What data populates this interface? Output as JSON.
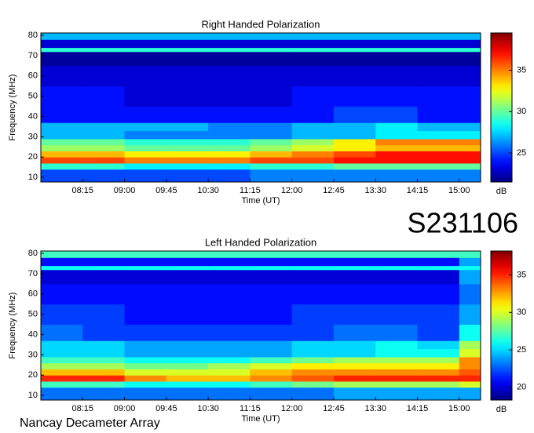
{
  "chart_data": [
    {
      "type": "heatmap",
      "title": "Right Handed Polarization",
      "xlabel": "Time (UT)",
      "ylabel": "Frequency (MHz)",
      "colorbar_label": "dB",
      "colormap": "jet",
      "xlim": [
        "07:30",
        "15:23"
      ],
      "xticks": [
        "08:15",
        "09:00",
        "09:45",
        "10:30",
        "11:15",
        "12:00",
        "12:45",
        "13:30",
        "14:15",
        "15:00"
      ],
      "ylim": [
        7.7,
        81.2
      ],
      "yticks": [
        10,
        20,
        30,
        40,
        50,
        60,
        70,
        80
      ],
      "clim": [
        21.5,
        39.5
      ],
      "cticks": [
        25,
        30,
        35
      ],
      "x": [
        "07:30",
        "08:15",
        "09:00",
        "09:45",
        "10:30",
        "11:15",
        "12:00",
        "12:45",
        "13:30",
        "14:15",
        "15:00"
      ],
      "y": [
        7.7,
        14,
        17,
        20,
        23,
        26,
        29,
        33,
        37,
        45,
        55,
        65,
        72,
        74,
        78
      ],
      "values": [
        [
          25,
          25,
          25,
          25,
          25,
          26,
          26,
          26,
          26,
          26,
          26
        ],
        [
          29,
          29,
          28,
          28,
          28,
          29,
          29,
          30,
          30,
          30,
          30
        ],
        [
          36,
          36,
          35,
          35,
          35,
          36,
          36,
          37,
          37,
          37,
          37
        ],
        [
          34,
          34,
          33,
          33,
          33,
          34,
          35,
          36,
          37,
          37,
          37
        ],
        [
          31,
          31,
          30,
          30,
          30,
          31,
          32,
          33,
          34,
          34,
          34
        ],
        [
          30,
          30,
          29,
          29,
          29,
          30,
          31,
          33,
          35,
          35,
          35
        ],
        [
          27,
          27,
          26,
          26,
          26,
          26,
          27,
          27,
          28,
          28,
          28
        ],
        [
          27,
          27,
          27,
          27,
          26,
          26,
          27,
          27,
          28,
          27,
          27
        ],
        [
          24,
          24,
          24,
          24,
          24,
          24,
          24,
          25,
          25,
          24,
          24
        ],
        [
          24,
          24,
          23,
          23,
          23,
          23,
          24,
          24,
          24,
          24,
          24
        ],
        [
          23,
          23,
          23,
          23,
          23,
          23,
          23,
          23,
          23,
          23,
          23
        ],
        [
          22,
          22,
          22,
          22,
          22,
          22,
          22,
          22,
          22,
          22,
          22
        ],
        [
          29,
          29,
          29,
          29,
          29,
          29,
          29,
          29,
          29,
          29,
          29
        ],
        [
          23,
          23,
          23,
          23,
          23,
          23,
          23,
          23,
          23,
          23,
          23
        ],
        [
          27,
          27,
          27,
          27,
          27,
          27,
          27,
          27,
          27,
          27,
          27
        ]
      ]
    },
    {
      "type": "heatmap",
      "title": "Left Handed Polarization",
      "xlabel": "Time (UT)",
      "ylabel": "Frequency (MHz)",
      "colorbar_label": "dB",
      "colormap": "jet",
      "xlim": [
        "07:30",
        "15:23"
      ],
      "xticks": [
        "08:15",
        "09:00",
        "09:45",
        "10:30",
        "11:15",
        "12:00",
        "12:45",
        "13:30",
        "14:15",
        "15:00"
      ],
      "ylim": [
        7.7,
        81.2
      ],
      "yticks": [
        10,
        20,
        30,
        40,
        50,
        60,
        70,
        80
      ],
      "clim": [
        18.3,
        38.2
      ],
      "cticks": [
        20,
        25,
        30,
        35
      ],
      "x": [
        "07:30",
        "08:15",
        "09:00",
        "09:45",
        "10:30",
        "11:15",
        "12:00",
        "12:45",
        "13:30",
        "14:15",
        "15:00"
      ],
      "y": [
        7.7,
        14,
        17,
        20,
        23,
        26,
        29,
        33,
        37,
        45,
        55,
        65,
        72,
        74,
        78
      ],
      "values": [
        [
          23,
          23,
          23,
          23,
          23,
          23,
          23,
          24,
          24,
          24,
          24
        ],
        [
          27,
          27,
          26,
          26,
          26,
          27,
          28,
          29,
          29,
          29,
          30
        ],
        [
          35,
          35,
          33,
          32,
          32,
          33,
          34,
          35,
          35,
          35,
          35
        ],
        [
          32,
          32,
          30,
          30,
          30,
          32,
          33,
          33,
          33,
          33,
          34
        ],
        [
          29,
          29,
          28,
          28,
          29,
          30,
          31,
          31,
          31,
          31,
          33
        ],
        [
          27,
          27,
          26,
          26,
          26,
          27,
          28,
          29,
          29,
          29,
          33
        ],
        [
          25,
          25,
          24,
          24,
          24,
          24,
          25,
          25,
          26,
          26,
          30
        ],
        [
          25,
          25,
          24,
          24,
          24,
          24,
          25,
          25,
          26,
          25,
          29
        ],
        [
          23,
          22,
          22,
          22,
          22,
          22,
          22,
          23,
          23,
          22,
          26
        ],
        [
          22,
          22,
          21,
          21,
          21,
          21,
          22,
          22,
          22,
          22,
          24
        ],
        [
          21,
          21,
          21,
          21,
          21,
          21,
          21,
          21,
          21,
          21,
          23
        ],
        [
          20,
          20,
          20,
          20,
          20,
          20,
          20,
          20,
          20,
          20,
          24
        ],
        [
          26,
          26,
          26,
          26,
          26,
          26,
          26,
          26,
          26,
          26,
          26
        ],
        [
          21,
          21,
          21,
          21,
          21,
          21,
          21,
          21,
          21,
          21,
          24
        ],
        [
          27,
          27,
          27,
          27,
          27,
          27,
          27,
          27,
          27,
          27,
          27
        ]
      ]
    }
  ],
  "station_label": "S231106",
  "footer": "Nancay Decameter Array"
}
